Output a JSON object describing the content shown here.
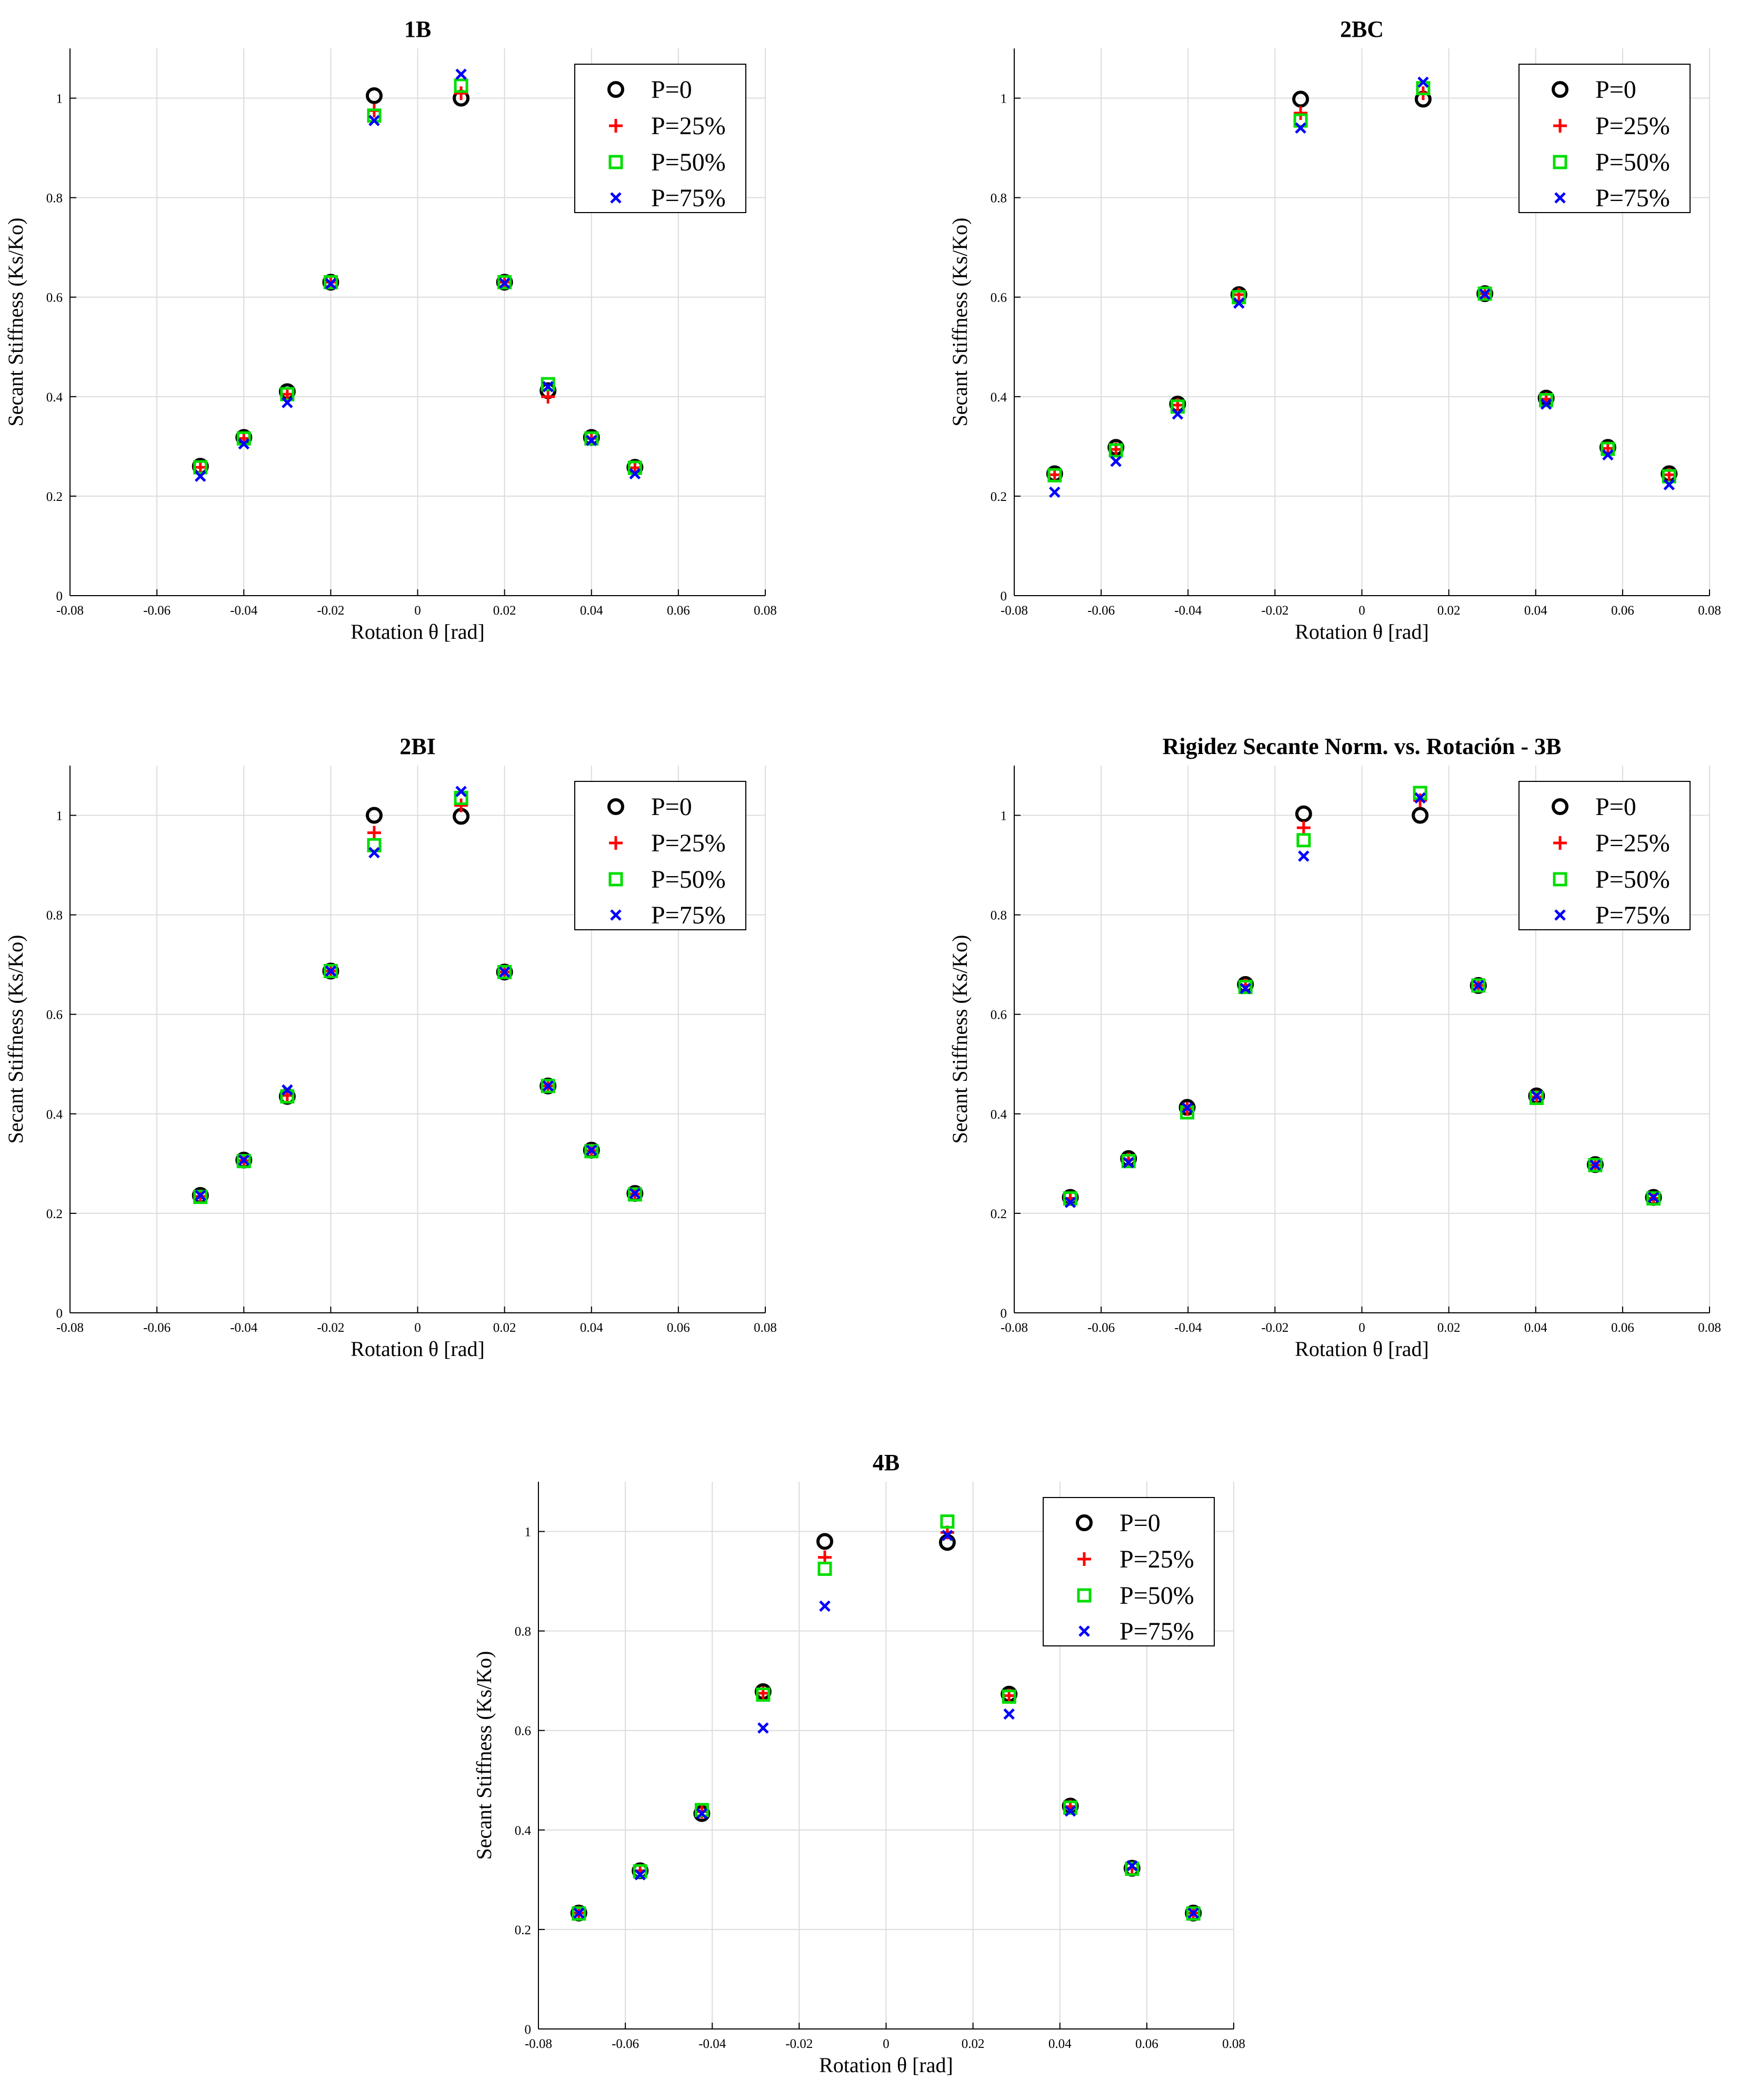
{
  "figure": {
    "common": {
      "xlabel": "Rotation θ [rad]",
      "ylabel": "Secant Stiffness (Ks/Ko)",
      "xlim": [
        -0.08,
        0.08
      ],
      "ylim": [
        0,
        1.1
      ],
      "xticks": [
        -0.08,
        -0.06,
        -0.04,
        -0.02,
        0,
        0.02,
        0.04,
        0.06,
        0.08
      ],
      "xtick_labels": [
        "-0.08",
        "-0.06",
        "-0.04",
        "-0.02",
        "0",
        "0.02",
        "0.04",
        "0.06",
        "0.08"
      ],
      "yticks": [
        0,
        0.2,
        0.4,
        0.6,
        0.8,
        1
      ],
      "ytick_labels": [
        "0",
        "0.2",
        "0.4",
        "0.6",
        "0.8",
        "1"
      ],
      "legend": [
        {
          "label": "P=0",
          "marker": "circle",
          "color": "#000000"
        },
        {
          "label": "P=25%",
          "marker": "plus",
          "color": "#ff0000"
        },
        {
          "label": "P=50%",
          "marker": "square",
          "color": "#00dd00"
        },
        {
          "label": "P=75%",
          "marker": "x",
          "color": "#0000ff"
        }
      ]
    }
  },
  "chart_data": [
    {
      "type": "scatter",
      "title": "1B",
      "legend_position": "top-right",
      "x": [
        -0.05,
        -0.04,
        -0.03,
        -0.02,
        -0.01,
        0.01,
        0.02,
        0.03,
        0.04,
        0.05
      ],
      "series": [
        {
          "name": "P=0",
          "values": [
            0.26,
            0.318,
            0.41,
            0.63,
            1.005,
            1.0,
            0.63,
            0.412,
            0.318,
            0.258
          ]
        },
        {
          "name": "P=25%",
          "values": [
            0.258,
            0.316,
            0.405,
            0.63,
            0.975,
            1.01,
            0.63,
            0.4,
            0.316,
            0.257
          ]
        },
        {
          "name": "P=50%",
          "values": [
            0.258,
            0.316,
            0.405,
            0.63,
            0.965,
            1.025,
            0.63,
            0.425,
            0.316,
            0.257
          ]
        },
        {
          "name": "P=75%",
          "values": [
            0.24,
            0.305,
            0.388,
            0.627,
            0.955,
            1.048,
            0.628,
            0.42,
            0.312,
            0.245
          ]
        }
      ]
    },
    {
      "type": "scatter",
      "title": "2BC",
      "legend_position": "top-right",
      "x": [
        -0.0707,
        -0.0566,
        -0.0424,
        -0.0283,
        -0.0141,
        0.0141,
        0.0283,
        0.0424,
        0.0566,
        0.0707
      ],
      "series": [
        {
          "name": "P=0",
          "values": [
            0.245,
            0.298,
            0.385,
            0.605,
            0.998,
            0.998,
            0.607,
            0.397,
            0.298,
            0.245
          ]
        },
        {
          "name": "P=25%",
          "values": [
            0.243,
            0.294,
            0.383,
            0.605,
            0.97,
            1.01,
            0.607,
            0.395,
            0.296,
            0.243
          ]
        },
        {
          "name": "P=50%",
          "values": [
            0.242,
            0.292,
            0.38,
            0.6,
            0.955,
            1.02,
            0.607,
            0.393,
            0.295,
            0.24
          ]
        },
        {
          "name": "P=75%",
          "values": [
            0.208,
            0.27,
            0.365,
            0.588,
            0.94,
            1.032,
            0.606,
            0.385,
            0.283,
            0.223
          ]
        }
      ]
    },
    {
      "type": "scatter",
      "title": "2BI",
      "legend_position": "top-right",
      "x": [
        -0.05,
        -0.04,
        -0.03,
        -0.02,
        -0.01,
        0.01,
        0.02,
        0.03,
        0.04,
        0.05
      ],
      "series": [
        {
          "name": "P=0",
          "values": [
            0.236,
            0.307,
            0.435,
            0.687,
            1.0,
            0.998,
            0.685,
            0.456,
            0.327,
            0.24
          ]
        },
        {
          "name": "P=25%",
          "values": [
            0.234,
            0.306,
            0.437,
            0.687,
            0.965,
            1.02,
            0.685,
            0.456,
            0.326,
            0.239
          ]
        },
        {
          "name": "P=50%",
          "values": [
            0.233,
            0.305,
            0.435,
            0.687,
            0.94,
            1.035,
            0.685,
            0.456,
            0.325,
            0.238
          ]
        },
        {
          "name": "P=75%",
          "values": [
            0.236,
            0.307,
            0.448,
            0.687,
            0.925,
            1.048,
            0.685,
            0.456,
            0.327,
            0.24
          ]
        }
      ]
    },
    {
      "type": "scatter",
      "title": "Rigidez Secante Norm. vs. Rotación - 3B",
      "legend_position": "top-right",
      "x": [
        -0.0671,
        -0.0537,
        -0.0402,
        -0.0268,
        -0.0134,
        0.0134,
        0.0268,
        0.0402,
        0.0537,
        0.0671
      ],
      "series": [
        {
          "name": "P=0",
          "values": [
            0.232,
            0.31,
            0.413,
            0.66,
            1.003,
            1.0,
            0.658,
            0.436,
            0.298,
            0.232
          ]
        },
        {
          "name": "P=25%",
          "values": [
            0.23,
            0.308,
            0.41,
            0.658,
            0.975,
            1.03,
            0.658,
            0.434,
            0.297,
            0.23
          ]
        },
        {
          "name": "P=50%",
          "values": [
            0.23,
            0.305,
            0.403,
            0.655,
            0.95,
            1.045,
            0.658,
            0.432,
            0.297,
            0.23
          ]
        },
        {
          "name": "P=75%",
          "values": [
            0.222,
            0.302,
            0.412,
            0.652,
            0.918,
            1.035,
            0.658,
            0.436,
            0.297,
            0.232
          ]
        }
      ]
    },
    {
      "type": "scatter",
      "title": "4B",
      "legend_position": "top-right",
      "x": [
        -0.0707,
        -0.0566,
        -0.0424,
        -0.0283,
        -0.0141,
        0.0141,
        0.0283,
        0.0424,
        0.0566,
        0.0707
      ],
      "series": [
        {
          "name": "P=0",
          "values": [
            0.233,
            0.318,
            0.433,
            0.678,
            0.98,
            0.978,
            0.673,
            0.448,
            0.323,
            0.233
          ]
        },
        {
          "name": "P=25%",
          "values": [
            0.233,
            0.318,
            0.437,
            0.675,
            0.948,
            0.998,
            0.67,
            0.447,
            0.323,
            0.233
          ]
        },
        {
          "name": "P=50%",
          "values": [
            0.232,
            0.317,
            0.44,
            0.672,
            0.925,
            1.02,
            0.668,
            0.445,
            0.322,
            0.232
          ]
        },
        {
          "name": "P=75%",
          "values": [
            0.233,
            0.31,
            0.433,
            0.605,
            0.85,
            0.992,
            0.633,
            0.438,
            0.328,
            0.233
          ]
        }
      ]
    }
  ]
}
